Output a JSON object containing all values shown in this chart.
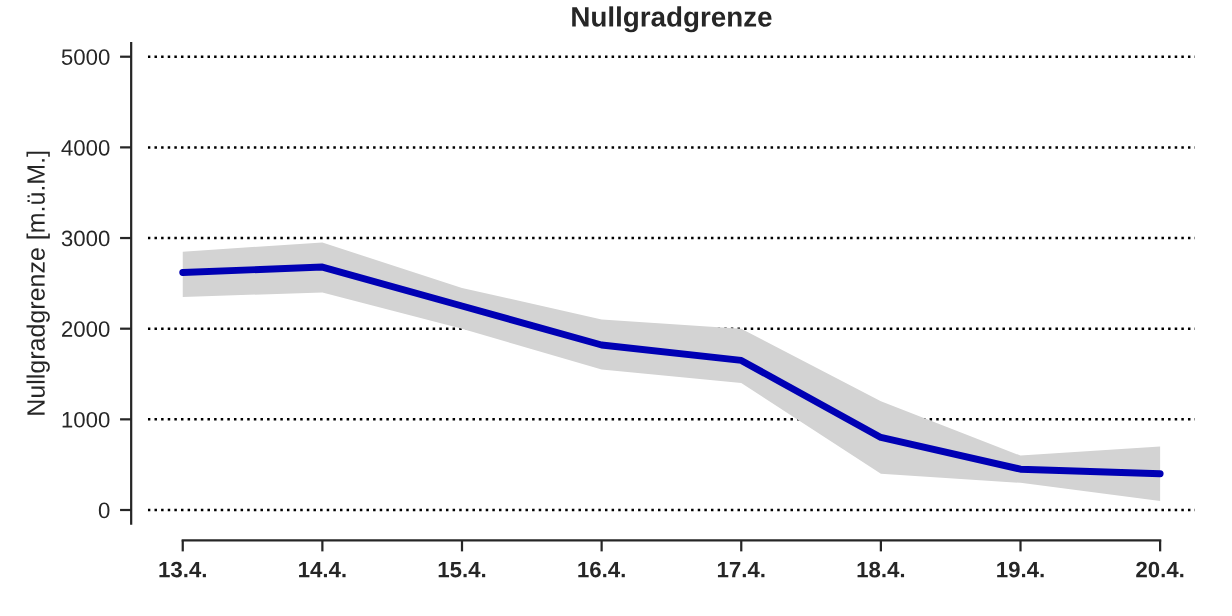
{
  "chart_data": {
    "type": "line",
    "title": "Nullgradgrenze",
    "ylabel": "Nullgradgrenze [m.ü.M.]",
    "categories": [
      "13.4.",
      "14.4.",
      "15.4.",
      "16.4.",
      "17.4.",
      "18.4.",
      "19.4.",
      "20.4."
    ],
    "series": [
      {
        "color": "#0000b4",
        "values": [
          2620,
          2680,
          2250,
          1820,
          1650,
          800,
          450,
          400
        ],
        "lower": [
          2350,
          2400,
          2000,
          1550,
          1400,
          400,
          300,
          100
        ],
        "upper": [
          2850,
          2950,
          2450,
          2100,
          2000,
          1200,
          600,
          700
        ]
      }
    ],
    "ylim": [
      -150,
      5150
    ],
    "yticks": [
      0,
      1000,
      2000,
      3000,
      4000,
      5000
    ],
    "grid": "y",
    "line_style": "solid",
    "marker": "none",
    "legend": false
  }
}
